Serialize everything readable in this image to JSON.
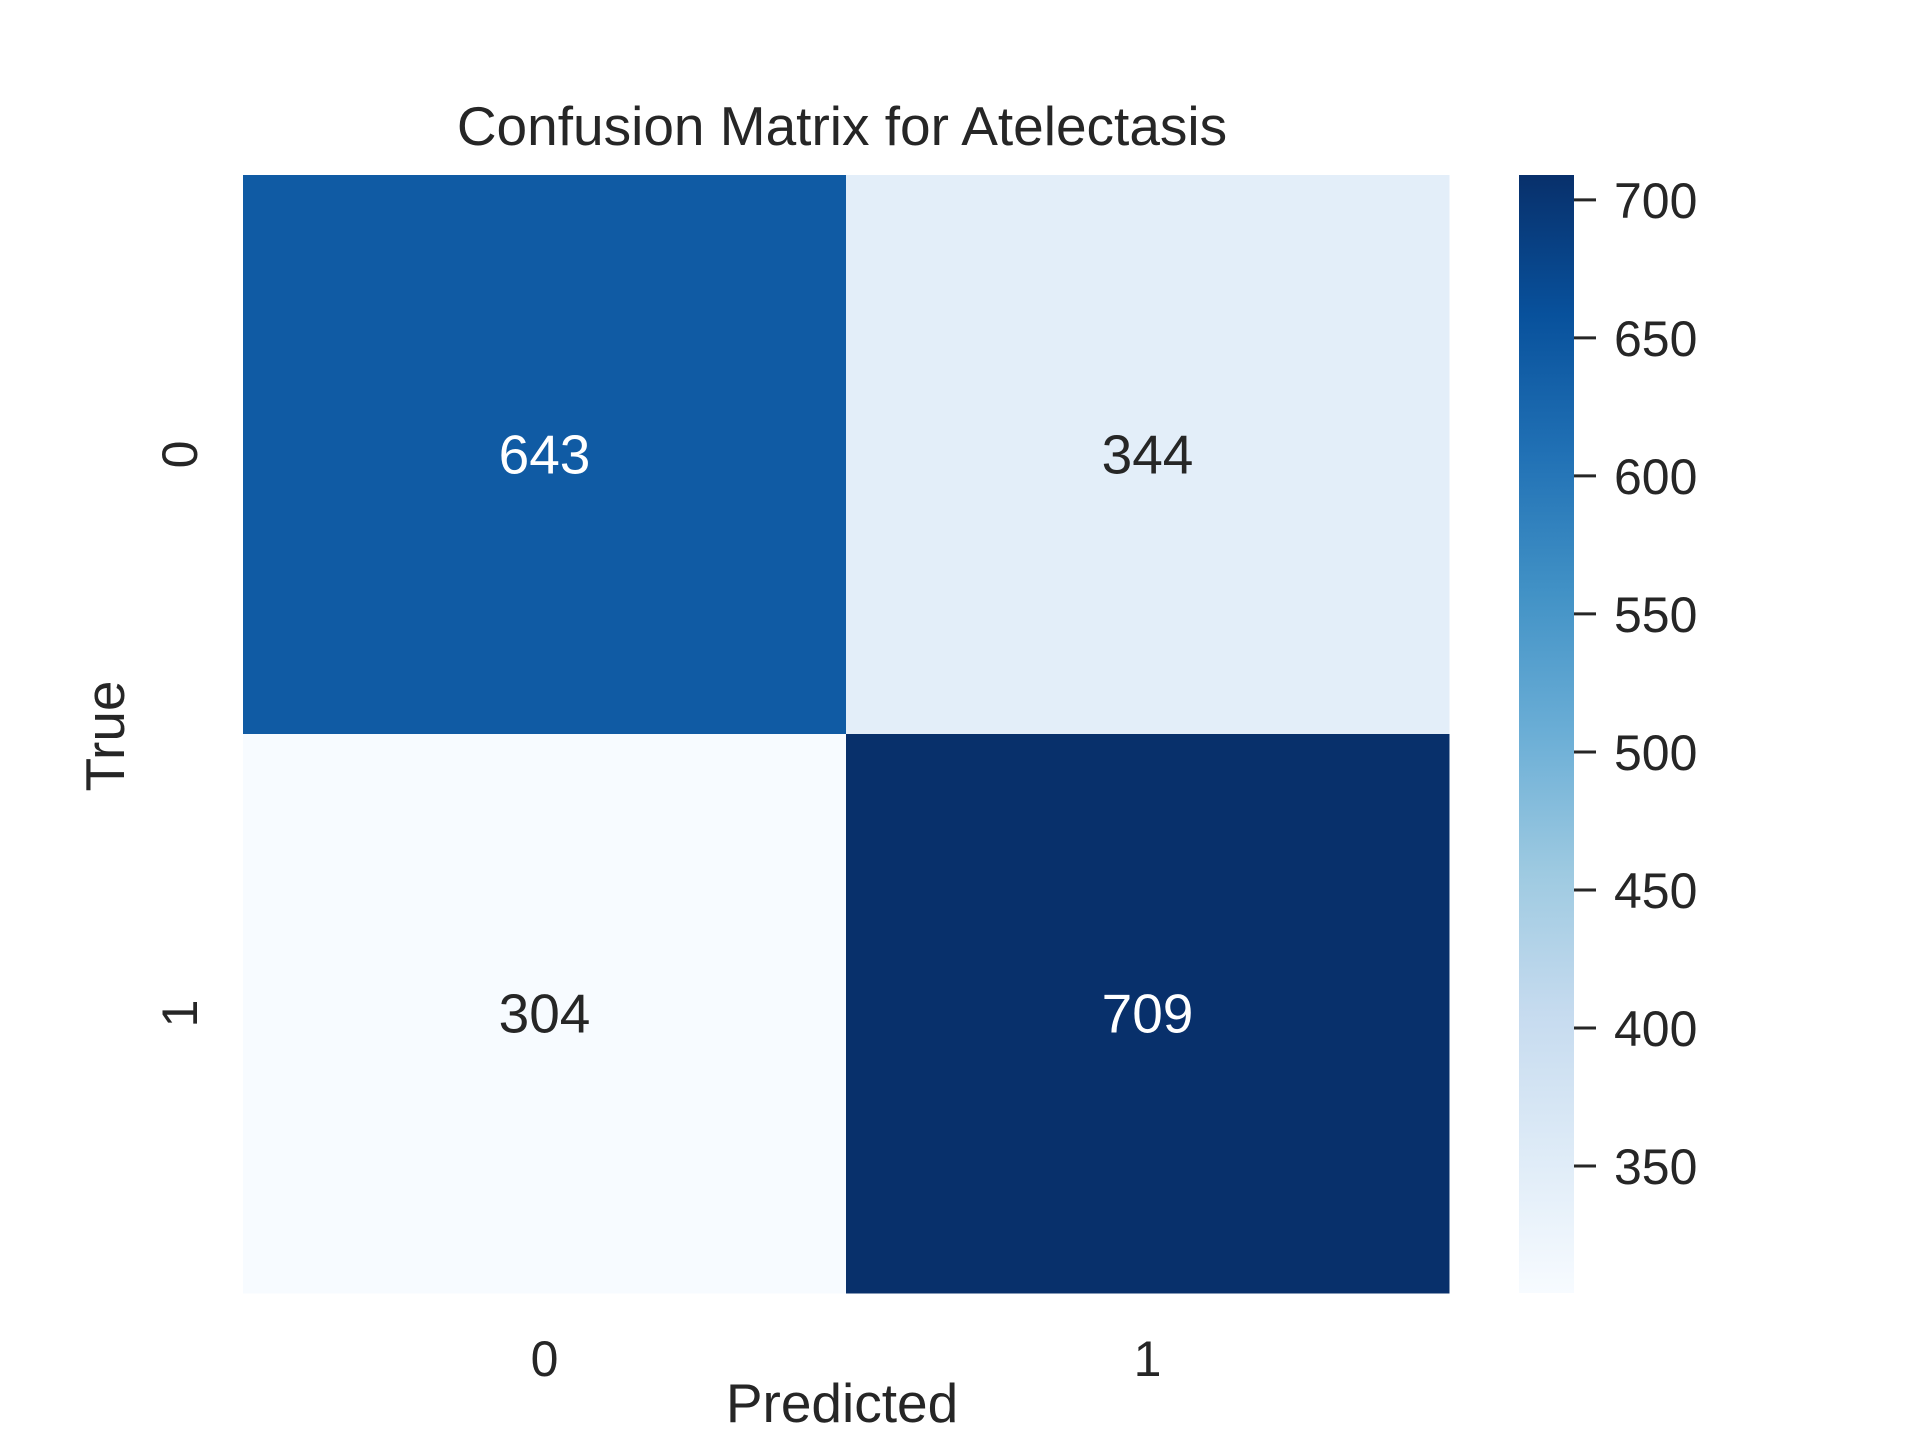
{
  "chart_data": {
    "type": "heatmap",
    "title": "Confusion Matrix for Atelectasis",
    "xlabel": "Predicted",
    "ylabel": "True",
    "x_categories": [
      "0",
      "1"
    ],
    "y_categories": [
      "0",
      "1"
    ],
    "values": [
      [
        643,
        344
      ],
      [
        304,
        709
      ]
    ],
    "colorbar": {
      "min": 304,
      "max": 709,
      "ticks": [
        350,
        400,
        450,
        500,
        550,
        600,
        650,
        700
      ],
      "colormap": "Blues"
    },
    "colors": {
      "low": "#f7fbff",
      "high": "#08306b",
      "text_dark": "#262626",
      "text_light": "#ffffff"
    }
  }
}
